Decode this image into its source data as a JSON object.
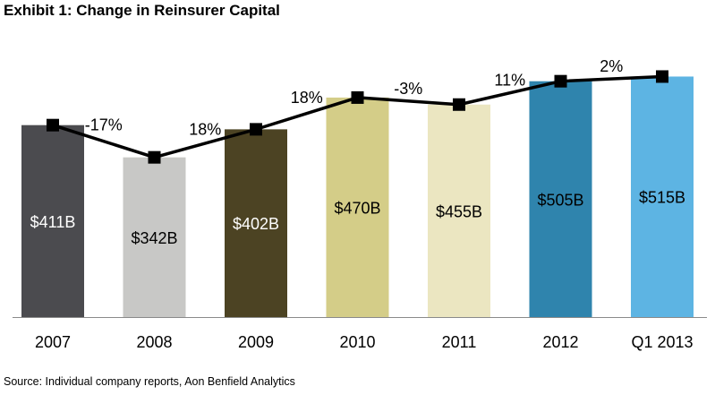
{
  "title": "Exhibit 1: Change in Reinsurer Capital",
  "source": "Source: Individual company reports, Aon Benfield Analytics",
  "chart_data": {
    "type": "bar",
    "title": "Exhibit 1: Change in Reinsurer Capital",
    "xlabel": "",
    "ylabel": "",
    "grid": false,
    "legend": "none",
    "categories": [
      "2007",
      "2008",
      "2009",
      "2010",
      "2011",
      "2012",
      "Q1 2013"
    ],
    "values": [
      411,
      342,
      402,
      470,
      455,
      505,
      515
    ],
    "value_labels": [
      "$411B",
      "$342B",
      "$402B",
      "$470B",
      "$455B",
      "$505B",
      "$515B"
    ],
    "bar_colors": [
      "#4b4b4f",
      "#c8c8c6",
      "#4c4323",
      "#d4cd88",
      "#ebe6c1",
      "#2f84ad",
      "#5db4e3"
    ],
    "value_label_colors": [
      "#ffffff",
      "#000000",
      "#ffffff",
      "#000000",
      "#000000",
      "#000000",
      "#000000"
    ],
    "line": {
      "values": [
        411,
        342,
        402,
        470,
        455,
        505,
        515
      ],
      "color": "#000000"
    },
    "pct_changes": [
      "-17%",
      "18%",
      "18%",
      "-3%",
      "11%",
      "2%"
    ],
    "ylim": [
      0,
      560
    ]
  }
}
